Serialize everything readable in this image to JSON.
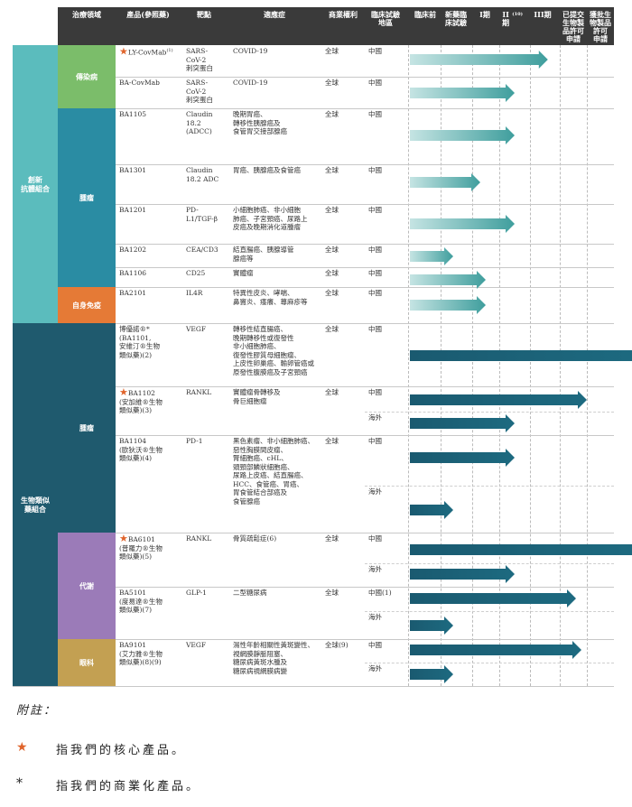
{
  "headers": {
    "area": "治療領域",
    "product": "產品(參照藥)",
    "target": "靶點",
    "indication": "適應症",
    "rights": "商業權利",
    "location": "臨床試驗\n地區",
    "preclinical": "臨床前",
    "ind": "新藥臨\n床試驗",
    "phase1": "I期",
    "phase2": "II期",
    "phase2_sup": "(10)",
    "phase3": "III期",
    "bla": "已提交\n生物製\n品許可\n申請",
    "approved": "獲批生\n物製品\n許可\n申請"
  },
  "categories": {
    "novel": "創新\n抗體組合",
    "biosimilar": "生物類似\n藥組合",
    "infectious": "傳染病",
    "oncology": "腫瘤",
    "autoimmune": "自身免疫",
    "oncology2": "腫瘤",
    "metabolism": "代謝",
    "ophthalmology": "眼科"
  },
  "rows": [
    {
      "product": "LY-CovMab",
      "sup": "(1)",
      "star": true,
      "target": "SARS-\nCoV-2\n刺突蛋白",
      "indication": "COVID-19",
      "rights": "全球",
      "region": "中國"
    },
    {
      "product": "BA-CovMab",
      "sup": "",
      "star": false,
      "target": "SARS-\nCoV-2\n刺突蛋白",
      "indication": "COVID-19",
      "rights": "全球",
      "region": "中國"
    },
    {
      "product": "BA1105",
      "sup": "",
      "star": false,
      "target": "Claudin\n18.2\n(ADCC)",
      "indication": "晚期胃癌、\n轉移性胰腺癌及\n食管胃交接部腺癌",
      "rights": "全球",
      "region": "中國"
    },
    {
      "product": "BA1301",
      "sup": "",
      "star": false,
      "target": "Claudin\n18.2 ADC",
      "indication": "胃癌、胰腺癌及食管癌",
      "rights": "全球",
      "region": "中國"
    },
    {
      "product": "BA1201",
      "sup": "",
      "star": false,
      "target": "PD-\nL1/TGF-β",
      "indication": "小細胞肺癌、非小細胞\n肺癌、子宮頸癌、尿路上\n皮癌及晚期消化道腫瘤",
      "rights": "全球",
      "region": "中國"
    },
    {
      "product": "BA1202",
      "sup": "",
      "star": false,
      "target": "CEA/CD3",
      "indication": "結直腸癌、胰腺導管\n腺癌等",
      "rights": "全球",
      "region": "中國"
    },
    {
      "product": "BA1106",
      "sup": "",
      "star": false,
      "target": "CD25",
      "indication": "實體瘤",
      "rights": "全球",
      "region": "中國"
    },
    {
      "product": "BA2101",
      "sup": "",
      "star": false,
      "target": "IL4R",
      "indication": "特異性皮炎、哮喘、\n鼻竇炎、瘙癢、蕁麻疹等",
      "rights": "全球",
      "region": "中國"
    },
    {
      "product": "博優諾®*\n(BA1101,\n安維汀®生物\n類似藥)(2)",
      "sup": "",
      "star": false,
      "target": "VEGF",
      "indication": "轉移性結直腸癌、\n晚期轉移性或復發性\n非小細胞肺癌、\n復發性膠質母細胞瘤、\n上皮性卵巢癌、輸卵管癌或\n原發性腹膜癌及子宮頸癌",
      "rights": "全球",
      "region": "中國"
    },
    {
      "product": "BA1102\n(安加維®生物\n類似藥)(3)",
      "sup": "",
      "star": true,
      "target": "RANKL",
      "indication": "實體瘤骨轉移及\n骨巨細胞瘤",
      "rights": "全球",
      "region": "中國",
      "region2": "海外"
    },
    {
      "product": "BA1104\n(歐狄沃®生物\n類似藥)(4)",
      "sup": "",
      "star": false,
      "target": "PD-1",
      "indication": "黑色素瘤、非小細胞肺癌、\n惡性胸膜間皮瘤、\n腎細胞癌、cHL、\n頭頸部鱗狀細胞癌、\n尿路上皮癌、結直腸癌、\nHCC、食管癌、胃癌、\n胃食管結合部癌及\n食管腺癌",
      "rights": "全球",
      "region": "中國",
      "region2": "海外"
    },
    {
      "product": "BA6101\n(普羅力®生物\n類似藥)(5)",
      "sup": "",
      "star": true,
      "target": "RANKL",
      "indication": "骨質疏鬆症(6)",
      "rights": "全球",
      "region": "中國",
      "region2": "海外"
    },
    {
      "product": "BA5101\n(度易達®生物\n類似藥)(7)",
      "sup": "",
      "star": false,
      "target": "GLP-1",
      "indication": "二型糖尿病",
      "rights": "全球",
      "region": "中國(1)",
      "region2": "海外"
    },
    {
      "product": "BA9101\n(艾力雅®生物\n類似藥)(8)(9)",
      "sup": "",
      "star": false,
      "target": "VEGF",
      "indication": "濕性年齡相關性黃斑變性、\n視網膜靜脈阻塞、\n糖尿病黃斑水腫及\n糖尿病視網膜病變",
      "rights": "全球(9)",
      "region": "中國",
      "region2": "海外"
    }
  ],
  "stage_values": [
    {
      "label": "LY-CovMab 中國",
      "stage": 4.6
    },
    {
      "label": "BA-CovMab 中國",
      "stage": 3.5
    },
    {
      "label": "BA1105 中國",
      "stage": 3.5
    },
    {
      "label": "BA1301 中國",
      "stage": 2.3
    },
    {
      "label": "BA1201 中國",
      "stage": 3.5
    },
    {
      "label": "BA1202 中國",
      "stage": 1.4
    },
    {
      "label": "BA1106 中國",
      "stage": 2.5
    },
    {
      "label": "BA2101 中國",
      "stage": 2.5
    },
    {
      "label": "BA1101 中國",
      "stage": 8.0
    },
    {
      "label": "BA1102 中國",
      "stage": 6.0
    },
    {
      "label": "BA1102 海外",
      "stage": 3.5
    },
    {
      "label": "BA1104 中國",
      "stage": 3.5
    },
    {
      "label": "BA1104 海外",
      "stage": 1.4
    },
    {
      "label": "BA6101 中國",
      "stage": 8.0
    },
    {
      "label": "BA6101 海外",
      "stage": 3.5
    },
    {
      "label": "BA5101 中國",
      "stage": 5.6
    },
    {
      "label": "BA5101 海外",
      "stage": 1.4
    },
    {
      "label": "BA9101 中國",
      "stage": 5.8
    },
    {
      "label": "BA9101 海外",
      "stage": 1.4
    }
  ],
  "notes": {
    "title": "附註：",
    "star_symbol": "★",
    "star_text": "指我們的核心產品。",
    "asterisk_symbol": "*",
    "asterisk_text": "指我們的商業化產品。"
  },
  "colors": {
    "novel_band": "#5bbcbd",
    "infectious": "#7bbd6a",
    "oncology": "#2a8ca3",
    "autoimmune": "#e57a36",
    "biosimilar_band": "#1f5a6e",
    "metabolism": "#9b7bb8",
    "ophthalmology": "#c3a052",
    "star": "#e0642b"
  }
}
